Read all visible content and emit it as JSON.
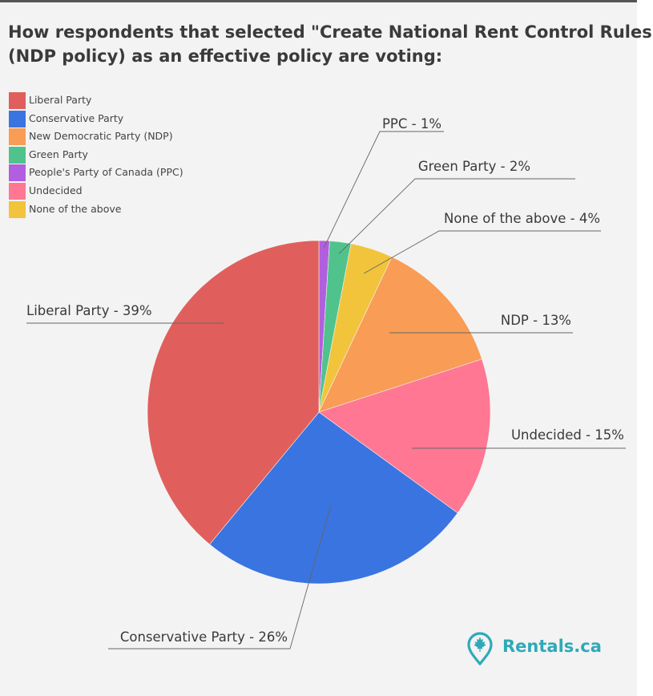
{
  "title_lines": [
    "How respondents that selected \"Create National Rent Control Rules\"",
    "(NDP policy) as an effective policy are voting:"
  ],
  "legend": [
    {
      "name": "Liberal Party",
      "color": "#e05f5c"
    },
    {
      "name": "Conservative Party",
      "color": "#3a74e0"
    },
    {
      "name": "New Democratic Party (NDP)",
      "color": "#f99c55"
    },
    {
      "name": "Green Party",
      "color": "#50c38c"
    },
    {
      "name": "People's Party of Canada (PPC)",
      "color": "#b15fde"
    },
    {
      "name": "Undecided",
      "color": "#ff7792"
    },
    {
      "name": "None of the above",
      "color": "#f2c43c"
    }
  ],
  "chart_data": {
    "type": "pie",
    "slices": [
      {
        "key": "ppc",
        "name": "People's Party of Canada (PPC)",
        "value": 1,
        "color": "#b15fde",
        "label": "PPC - 1%"
      },
      {
        "key": "green",
        "name": "Green Party",
        "value": 2,
        "color": "#50c38c",
        "label": "Green Party - 2%"
      },
      {
        "key": "none",
        "name": "None of the above",
        "value": 4,
        "color": "#f2c43c",
        "label": "None of the above - 4%"
      },
      {
        "key": "ndp",
        "name": "New Democratic Party (NDP)",
        "value": 13,
        "color": "#f99c55",
        "label": "NDP - 13%"
      },
      {
        "key": "undecided",
        "name": "Undecided",
        "value": 15,
        "color": "#ff7792",
        "label": "Undecided - 15%"
      },
      {
        "key": "conservative",
        "name": "Conservative Party",
        "value": 26,
        "color": "#3a74e0",
        "label": "Conservative Party  - 26%"
      },
      {
        "key": "liberal",
        "name": "Liberal Party",
        "value": 39,
        "color": "#e05f5c",
        "label": "Liberal Party  - 39%"
      }
    ],
    "legend_position": "top-left"
  },
  "brand": {
    "name": "Rentals.ca",
    "color": "#2fa9b9",
    "icon": "map-pin-maple-leaf-icon"
  }
}
